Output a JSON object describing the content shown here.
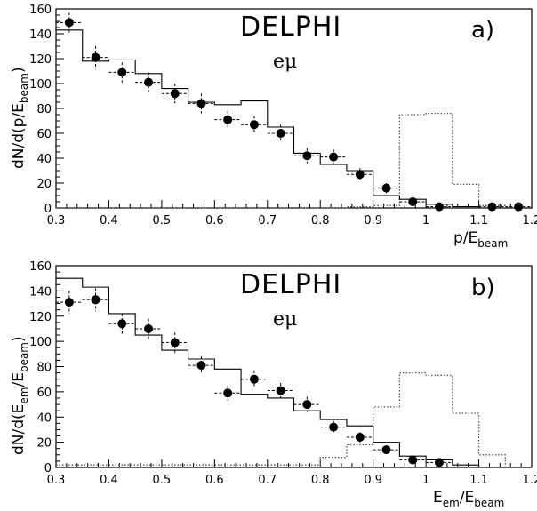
{
  "chart_data": [
    {
      "type": "line",
      "panel_label": "a)",
      "experiment": "DELPHI",
      "channel": "eμ",
      "xlabel": {
        "main": "p/E",
        "sub": "beam"
      },
      "ylabel": {
        "main": "dN/d(p/E",
        "sub": "beam",
        "close": ")"
      },
      "xlim": [
        0.3,
        1.2
      ],
      "ylim": [
        0,
        160
      ],
      "xticks": [
        "0.3",
        "0.4",
        "0.5",
        "0.6",
        "0.7",
        "0.8",
        "0.9",
        "1",
        "1.1",
        "1.2"
      ],
      "yticks": [
        "0",
        "20",
        "40",
        "60",
        "80",
        "100",
        "120",
        "140",
        "160"
      ],
      "bin_edges": [
        0.3,
        0.35,
        0.4,
        0.45,
        0.5,
        0.55,
        0.6,
        0.65,
        0.7,
        0.75,
        0.8,
        0.85,
        0.9,
        0.95,
        1.0,
        1.05,
        1.1,
        1.15,
        1.2
      ],
      "series": [
        {
          "style": "data-points",
          "x": [
            0.325,
            0.375,
            0.425,
            0.475,
            0.525,
            0.575,
            0.625,
            0.675,
            0.725,
            0.775,
            0.825,
            0.875,
            0.925,
            0.975,
            1.025,
            1.125,
            1.175
          ],
          "values": [
            149,
            121,
            109,
            101,
            92,
            84,
            71,
            67,
            60,
            42,
            41,
            27,
            16,
            5,
            1,
            1,
            1
          ],
          "errors": [
            8,
            9,
            8,
            8,
            8,
            8,
            7,
            7,
            7,
            6,
            6,
            5,
            4,
            3,
            1,
            1,
            1
          ]
        },
        {
          "style": "solid-histogram",
          "values": [
            143,
            118,
            119,
            108,
            96,
            85,
            83,
            86,
            65,
            44,
            35,
            30,
            10,
            7,
            3,
            1,
            0,
            0
          ]
        },
        {
          "style": "dotted-histogram",
          "values": [
            0,
            0,
            0,
            0,
            0,
            0,
            0,
            0,
            0,
            0,
            0,
            1,
            2,
            75,
            76,
            19,
            2,
            0
          ]
        }
      ]
    },
    {
      "type": "line",
      "panel_label": "b)",
      "experiment": "DELPHI",
      "channel": "eμ",
      "xlabel": {
        "main": "E",
        "sub1": "em",
        "mid": "/E",
        "sub2": "beam"
      },
      "ylabel": {
        "main": "dN/d(E",
        "sub1": "em",
        "mid": "/E",
        "sub2": "beam",
        "close": ")"
      },
      "xlim": [
        0.3,
        1.2
      ],
      "ylim": [
        0,
        160
      ],
      "xticks": [
        "0.3",
        "0.4",
        "0.5",
        "0.6",
        "0.7",
        "0.8",
        "0.9",
        "1",
        "1.1",
        "1.2"
      ],
      "yticks": [
        "0",
        "20",
        "40",
        "60",
        "80",
        "100",
        "120",
        "140",
        "160"
      ],
      "bin_edges": [
        0.3,
        0.35,
        0.4,
        0.45,
        0.5,
        0.55,
        0.6,
        0.65,
        0.7,
        0.75,
        0.8,
        0.85,
        0.9,
        0.95,
        1.0,
        1.05,
        1.1,
        1.15,
        1.2
      ],
      "series": [
        {
          "style": "data-points",
          "x": [
            0.325,
            0.375,
            0.425,
            0.475,
            0.525,
            0.575,
            0.625,
            0.675,
            0.725,
            0.775,
            0.825,
            0.875,
            0.925,
            0.975,
            1.025
          ],
          "values": [
            131,
            133,
            114,
            110,
            99,
            81,
            59,
            70,
            61,
            50,
            32,
            24,
            14,
            6,
            4
          ],
          "errors": [
            9,
            9,
            8,
            8,
            8,
            7,
            6,
            7,
            6,
            6,
            5,
            4,
            3,
            2,
            2
          ]
        },
        {
          "style": "solid-histogram",
          "values": [
            150,
            143,
            122,
            105,
            93,
            86,
            78,
            58,
            55,
            45,
            38,
            33,
            20,
            9,
            6,
            2,
            0,
            0
          ]
        },
        {
          "style": "dotted-histogram",
          "values": [
            2,
            2,
            2,
            2,
            2,
            2,
            2,
            2,
            2,
            2,
            8,
            18,
            48,
            75,
            73,
            43,
            10,
            0
          ]
        }
      ]
    }
  ]
}
